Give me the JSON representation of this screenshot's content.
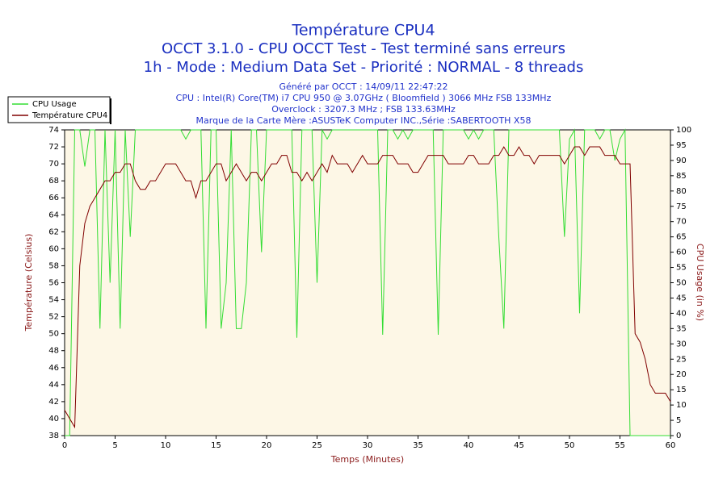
{
  "chart_data": {
    "type": "line",
    "title": "Température CPU4",
    "subtitle": [
      "OCCT 3.1.0 - CPU OCCT Test - Test terminé sans erreurs",
      "1h - Mode : Medium Data Set - Priorité : NORMAL - 8 threads"
    ],
    "info": [
      "Généré par OCCT : 14/09/11 22:47:22",
      "CPU : Intel(R) Core(TM) i7 CPU 950 @ 3.07GHz ( Bloomfield ) 3066 MHz FSB 133MHz",
      "Overclock : 3207.3 MHz ; FSB 133.63MHz",
      "Marque de la Carte Mère :ASUSTeK Computer INC.,Série :SABERTOOTH X58"
    ],
    "xlabel": "Temps (Minutes)",
    "ylabel": "Température (Celsius)",
    "y2label": "CPU Usage (in %)",
    "legend": "top-left",
    "x": [
      0,
      0.5,
      1,
      1.5,
      2,
      2.5,
      3,
      3.5,
      4,
      4.5,
      5,
      5.5,
      6,
      6.5,
      7,
      7.5,
      8,
      8.5,
      9,
      9.5,
      10,
      10.5,
      11,
      11.5,
      12,
      12.5,
      13,
      13.5,
      14,
      14.5,
      15,
      15.5,
      16,
      16.5,
      17,
      17.5,
      18,
      18.5,
      19,
      19.5,
      20,
      20.5,
      21,
      21.5,
      22,
      22.5,
      23,
      23.5,
      24,
      24.5,
      25,
      25.5,
      26,
      26.5,
      27,
      27.5,
      28,
      28.5,
      29,
      29.5,
      30,
      30.5,
      31,
      31.5,
      32,
      32.5,
      33,
      33.5,
      34,
      34.5,
      35,
      35.5,
      36,
      36.5,
      37,
      37.5,
      38,
      38.5,
      39,
      39.5,
      40,
      40.5,
      41,
      41.5,
      42,
      42.5,
      43,
      43.5,
      44,
      44.5,
      45,
      45.5,
      46,
      46.5,
      47,
      47.5,
      48,
      48.5,
      49,
      49.5,
      50,
      50.5,
      51,
      51.5,
      52,
      52.5,
      53,
      53.5,
      54,
      54.5,
      55,
      55.5,
      56,
      56.5,
      57,
      57.5,
      58,
      58.5,
      59,
      59.5,
      60
    ],
    "series": [
      {
        "name": "CPU Usage",
        "color": "#33dd33",
        "axis": "y2",
        "values": [
          0,
          0,
          100,
          100,
          88,
          100,
          100,
          35,
          100,
          50,
          100,
          35,
          100,
          65,
          100,
          100,
          100,
          100,
          100,
          100,
          100,
          100,
          100,
          100,
          97,
          100,
          100,
          100,
          35,
          100,
          100,
          35,
          50,
          100,
          35,
          35,
          50,
          100,
          100,
          60,
          100,
          100,
          100,
          100,
          100,
          100,
          32,
          100,
          100,
          100,
          50,
          100,
          97,
          100,
          100,
          100,
          100,
          100,
          100,
          100,
          100,
          100,
          100,
          33,
          100,
          100,
          97,
          100,
          97,
          100,
          100,
          100,
          100,
          100,
          33,
          100,
          100,
          100,
          100,
          100,
          97,
          100,
          97,
          100,
          100,
          100,
          65,
          35,
          100,
          100,
          100,
          100,
          100,
          100,
          100,
          100,
          100,
          100,
          100,
          65,
          97,
          100,
          40,
          100,
          100,
          100,
          97,
          100,
          100,
          90,
          97,
          100,
          0,
          0,
          0,
          0,
          0,
          0,
          0,
          0,
          0
        ]
      },
      {
        "name": "Température CPU4",
        "color": "#800000",
        "values": [
          41,
          40,
          39,
          58,
          63,
          65,
          66,
          67,
          68,
          68,
          69,
          69,
          70,
          70,
          68,
          67,
          67,
          68,
          68,
          69,
          70,
          70,
          70,
          69,
          68,
          68,
          66,
          68,
          68,
          69,
          70,
          70,
          68,
          69,
          70,
          69,
          68,
          69,
          69,
          68,
          69,
          70,
          70,
          71,
          71,
          69,
          69,
          68,
          69,
          68,
          69,
          70,
          69,
          71,
          70,
          70,
          70,
          69,
          70,
          71,
          70,
          70,
          70,
          71,
          71,
          71,
          70,
          70,
          70,
          69,
          69,
          70,
          71,
          71,
          71,
          71,
          70,
          70,
          70,
          70,
          71,
          71,
          70,
          70,
          70,
          71,
          71,
          72,
          71,
          71,
          72,
          71,
          71,
          70,
          71,
          71,
          71,
          71,
          71,
          70,
          71,
          72,
          72,
          71,
          72,
          72,
          72,
          71,
          71,
          71,
          70,
          70,
          70,
          50,
          49,
          47,
          44,
          43,
          43,
          43,
          42
        ]
      }
    ],
    "xlim": [
      0,
      60
    ],
    "xticks": [
      0,
      5,
      10,
      15,
      20,
      25,
      30,
      35,
      40,
      45,
      50,
      55,
      60
    ],
    "ylim": [
      38,
      74
    ],
    "yticks": [
      38,
      40,
      42,
      44,
      46,
      48,
      50,
      52,
      54,
      56,
      58,
      60,
      62,
      64,
      66,
      68,
      70,
      72,
      74
    ],
    "y2lim": [
      0,
      100
    ],
    "y2ticks": [
      0,
      5,
      10,
      15,
      20,
      25,
      30,
      35,
      40,
      45,
      50,
      55,
      60,
      65,
      70,
      75,
      80,
      85,
      90,
      95,
      100
    ]
  }
}
